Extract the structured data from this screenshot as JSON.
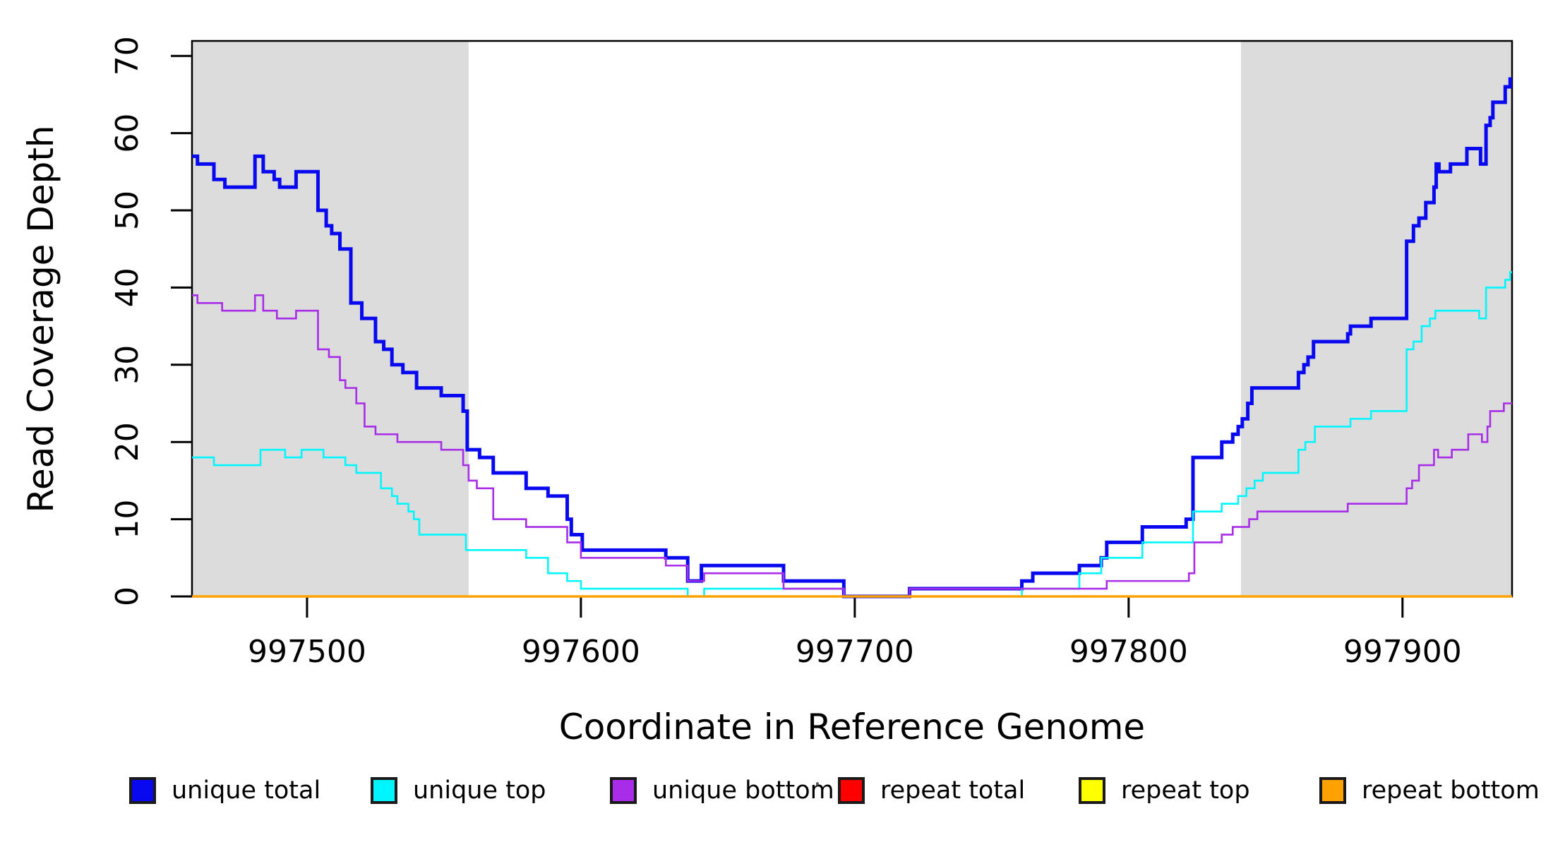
{
  "figure": {
    "ylabel": "Read Coverage Depth",
    "xlabel": "Coordinate in Reference Genome"
  },
  "colors": {
    "unique_total": "#0909ef",
    "unique_top": "#00f6ff",
    "unique_bottom": "#a82ce8",
    "repeat_total": "#ff0000",
    "repeat_top": "#ffff00",
    "repeat_bottom": "#ffa200",
    "shade": "#dcdcdc",
    "axis": "#000000"
  },
  "legend": {
    "items": [
      {
        "label": "unique total",
        "color_key": "unique_total"
      },
      {
        "label": "unique top",
        "color_key": "unique_top"
      },
      {
        "label": "unique bottom",
        "color_key": "unique_bottom"
      },
      {
        "label": "repeat total",
        "color_key": "repeat_total"
      },
      {
        "label": "repeat top",
        "color_key": "repeat_top"
      },
      {
        "label": "repeat bottom",
        "color_key": "repeat_bottom"
      }
    ]
  },
  "chart_data": {
    "type": "line",
    "step": true,
    "title": "",
    "xlabel": "Coordinate in Reference Genome",
    "ylabel": "Read Coverage Depth",
    "xlim": [
      997458,
      997940
    ],
    "ylim": [
      0,
      72
    ],
    "x_ticks": [
      997500,
      997600,
      997700,
      997800,
      997900
    ],
    "y_ticks": [
      0,
      10,
      20,
      30,
      40,
      50,
      60,
      70
    ],
    "grid": false,
    "legend_position": "bottom",
    "shaded_regions": [
      {
        "from": 997458,
        "to": 997559
      },
      {
        "from": 997841,
        "to": 997940
      }
    ],
    "series": [
      {
        "name": "unique total",
        "color_key": "unique_total",
        "width": 5,
        "points": [
          [
            997458,
            57
          ],
          [
            997460,
            56
          ],
          [
            997466,
            54
          ],
          [
            997470,
            53
          ],
          [
            997481,
            57
          ],
          [
            997484,
            55
          ],
          [
            997488,
            54
          ],
          [
            997490,
            53
          ],
          [
            997496,
            55
          ],
          [
            997504,
            50
          ],
          [
            997507,
            48
          ],
          [
            997509,
            47
          ],
          [
            997512,
            45
          ],
          [
            997516,
            38
          ],
          [
            997520,
            36
          ],
          [
            997525,
            33
          ],
          [
            997528,
            32
          ],
          [
            997531,
            30
          ],
          [
            997535,
            29
          ],
          [
            997540,
            27
          ],
          [
            997549,
            26
          ],
          [
            997557,
            24
          ],
          [
            997558.5,
            19
          ],
          [
            997563,
            18
          ],
          [
            997568,
            16
          ],
          [
            997580,
            14
          ],
          [
            997588,
            13
          ],
          [
            997595,
            10
          ],
          [
            997596.5,
            8
          ],
          [
            997600.5,
            6
          ],
          [
            997631,
            5
          ],
          [
            997639,
            2
          ],
          [
            997644,
            4
          ],
          [
            997674,
            2
          ],
          [
            997696,
            0
          ],
          [
            997720,
            1
          ],
          [
            997761,
            2
          ],
          [
            997765,
            3
          ],
          [
            997782,
            4
          ],
          [
            997790,
            5
          ],
          [
            997792,
            7
          ],
          [
            997805,
            9
          ],
          [
            997821,
            10
          ],
          [
            997823.5,
            18
          ],
          [
            997834,
            20
          ],
          [
            997838,
            21
          ],
          [
            997840,
            22
          ],
          [
            997841.5,
            23
          ],
          [
            997843.5,
            25
          ],
          [
            997845,
            27
          ],
          [
            997862,
            29
          ],
          [
            997864,
            30
          ],
          [
            997865.5,
            31
          ],
          [
            997867.5,
            33
          ],
          [
            997880,
            34
          ],
          [
            997881,
            35
          ],
          [
            997888.5,
            36
          ],
          [
            997901.5,
            46
          ],
          [
            997904,
            48
          ],
          [
            997906,
            49
          ],
          [
            997908.5,
            51
          ],
          [
            997911.5,
            53
          ],
          [
            997912.3,
            56
          ],
          [
            997913.3,
            55
          ],
          [
            997917.5,
            56
          ],
          [
            997923.5,
            58
          ],
          [
            997928.5,
            56
          ],
          [
            997930.5,
            61
          ],
          [
            997932,
            62
          ],
          [
            997933,
            64
          ],
          [
            997937.5,
            66
          ],
          [
            997939.3,
            67
          ]
        ]
      },
      {
        "name": "unique top",
        "color_key": "unique_top",
        "width": 2.6,
        "points": [
          [
            997458,
            18
          ],
          [
            997466,
            17
          ],
          [
            997483,
            19
          ],
          [
            997492,
            18
          ],
          [
            997498,
            19
          ],
          [
            997506,
            18
          ],
          [
            997514,
            17
          ],
          [
            997518,
            16
          ],
          [
            997527,
            14
          ],
          [
            997531,
            13
          ],
          [
            997533,
            12
          ],
          [
            997537,
            11
          ],
          [
            997539,
            10
          ],
          [
            997541,
            8
          ],
          [
            997558,
            6
          ],
          [
            997580,
            5
          ],
          [
            997588,
            3
          ],
          [
            997595,
            2
          ],
          [
            997600,
            1
          ],
          [
            997639,
            0
          ],
          [
            997645,
            1
          ],
          [
            997696,
            0
          ],
          [
            997761,
            1
          ],
          [
            997782,
            3
          ],
          [
            997790,
            5
          ],
          [
            997805,
            7
          ],
          [
            997823.5,
            11
          ],
          [
            997834,
            12
          ],
          [
            997840,
            13
          ],
          [
            997843,
            14
          ],
          [
            997846,
            15
          ],
          [
            997849,
            16
          ],
          [
            997862,
            19
          ],
          [
            997864.5,
            20
          ],
          [
            997868,
            22
          ],
          [
            997881,
            23
          ],
          [
            997888.5,
            24
          ],
          [
            997901.5,
            32
          ],
          [
            997904,
            33
          ],
          [
            997907,
            35
          ],
          [
            997910,
            36
          ],
          [
            997912,
            37
          ],
          [
            997928,
            36
          ],
          [
            997930.5,
            40
          ],
          [
            997937.5,
            41
          ],
          [
            997939.3,
            42
          ]
        ]
      },
      {
        "name": "unique bottom",
        "color_key": "unique_bottom",
        "width": 2.6,
        "points": [
          [
            997458,
            39
          ],
          [
            997460,
            38
          ],
          [
            997469,
            37
          ],
          [
            997481,
            39
          ],
          [
            997484,
            37
          ],
          [
            997489,
            36
          ],
          [
            997496,
            37
          ],
          [
            997504,
            32
          ],
          [
            997508,
            31
          ],
          [
            997512,
            28
          ],
          [
            997514,
            27
          ],
          [
            997518,
            25
          ],
          [
            997521,
            22
          ],
          [
            997525,
            21
          ],
          [
            997533,
            20
          ],
          [
            997549,
            19
          ],
          [
            997557,
            17
          ],
          [
            997559,
            15
          ],
          [
            997562,
            14
          ],
          [
            997568,
            10
          ],
          [
            997580,
            9
          ],
          [
            997595,
            7
          ],
          [
            997600,
            5
          ],
          [
            997631,
            4
          ],
          [
            997639,
            2
          ],
          [
            997645,
            3
          ],
          [
            997674,
            1
          ],
          [
            997696,
            0
          ],
          [
            997720,
            1
          ],
          [
            997792,
            2
          ],
          [
            997822,
            3
          ],
          [
            997824,
            7
          ],
          [
            997834,
            8
          ],
          [
            997838,
            9
          ],
          [
            997844,
            10
          ],
          [
            997847,
            11
          ],
          [
            997880,
            12
          ],
          [
            997901.5,
            14
          ],
          [
            997903.5,
            15
          ],
          [
            997906,
            17
          ],
          [
            997911.5,
            19
          ],
          [
            997913,
            18
          ],
          [
            997918,
            19
          ],
          [
            997924,
            21
          ],
          [
            997929,
            20
          ],
          [
            997931,
            22
          ],
          [
            997932,
            24
          ],
          [
            997937,
            25
          ]
        ]
      },
      {
        "name": "repeat total",
        "color_key": "repeat_total",
        "width": 2.6,
        "points": [
          [
            997458,
            0
          ]
        ]
      },
      {
        "name": "repeat top",
        "color_key": "repeat_top",
        "width": 2.6,
        "points": [
          [
            997458,
            0
          ]
        ]
      },
      {
        "name": "repeat bottom",
        "color_key": "repeat_bottom",
        "width": 3.5,
        "points": [
          [
            997458,
            0
          ]
        ]
      }
    ]
  }
}
